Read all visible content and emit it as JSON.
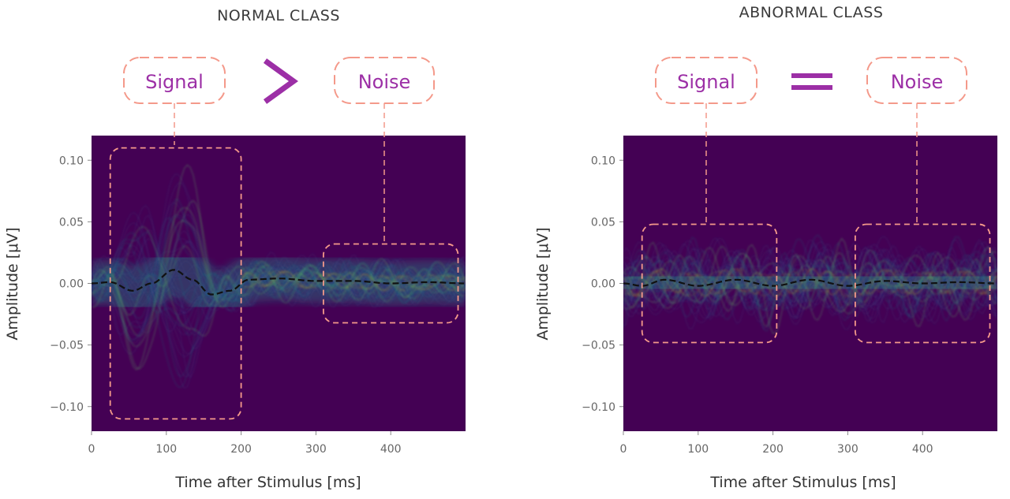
{
  "colors": {
    "background": "#440154",
    "trace_low": "#3b528b",
    "trace_mid": "#21918c",
    "trace_high": "#5ec962",
    "trace_peak": "#fde725",
    "mean_line": "#111111",
    "box": "#f4998a",
    "operator": "#9c2fa6"
  },
  "chart_data": [
    {
      "type": "heatmap",
      "title": "NORMAL CLASS",
      "xlabel": "Time after Stimulus [ms]",
      "ylabel": "Amplitude [μV]",
      "xlim": [
        0,
        500
      ],
      "ylim": [
        -0.12,
        0.12
      ],
      "x_ticks": [
        0,
        100,
        200,
        300,
        400
      ],
      "x_tick_labels": [
        "0",
        "100",
        "200",
        "300",
        "400"
      ],
      "y_ticks": [
        0.1,
        0.05,
        0.0,
        -0.05,
        -0.1
      ],
      "y_tick_labels": [
        "0.10",
        "0.05",
        "0.00",
        "−0.05",
        "−0.10"
      ],
      "grid": false,
      "mean_response": {
        "x": [
          0,
          25,
          55,
          80,
          110,
          135,
          160,
          185,
          210,
          250,
          300,
          350,
          400,
          450,
          500
        ],
        "y": [
          0.0,
          0.001,
          -0.006,
          0.0,
          0.011,
          0.003,
          -0.009,
          -0.006,
          0.003,
          0.004,
          0.002,
          0.002,
          0.0,
          0.001,
          0.0
        ]
      },
      "signal_envelope": {
        "x_range": [
          20,
          180
        ],
        "peak_amplitude": 0.1
      },
      "noise_band_amplitude": 0.02,
      "annotations": {
        "signal_label": "Signal",
        "noise_label": "Noise",
        "operator": ">",
        "signal_box": {
          "x": [
            25,
            200
          ],
          "y": [
            -0.11,
            0.11
          ]
        },
        "noise_box": {
          "x": [
            310,
            490
          ],
          "y": [
            -0.032,
            0.032
          ]
        }
      }
    },
    {
      "type": "heatmap",
      "title": "ABNORMAL CLASS",
      "xlabel": "Time after Stimulus [ms]",
      "ylabel": "Amplitude [μV]",
      "xlim": [
        0,
        500
      ],
      "ylim": [
        -0.12,
        0.12
      ],
      "x_ticks": [
        0,
        100,
        200,
        300,
        400
      ],
      "x_tick_labels": [
        "0",
        "100",
        "200",
        "300",
        "400"
      ],
      "y_ticks": [
        0.1,
        0.05,
        0.0,
        -0.05,
        -0.1
      ],
      "y_tick_labels": [
        "0.10",
        "0.05",
        "0.00",
        "−0.05",
        "−0.10"
      ],
      "grid": false,
      "mean_response": {
        "x": [
          0,
          25,
          55,
          100,
          150,
          200,
          250,
          300,
          350,
          400,
          450,
          500
        ],
        "y": [
          0.0,
          -0.002,
          0.003,
          -0.002,
          0.003,
          -0.002,
          0.003,
          -0.002,
          0.002,
          0.0,
          0.001,
          0.0
        ]
      },
      "signal_envelope": {
        "x_range": [
          20,
          180
        ],
        "peak_amplitude": 0.03
      },
      "noise_band_amplitude": 0.03,
      "annotations": {
        "signal_label": "Signal",
        "noise_label": "Noise",
        "operator": "=",
        "signal_box": {
          "x": [
            25,
            205
          ],
          "y": [
            -0.048,
            0.048
          ]
        },
        "noise_box": {
          "x": [
            310,
            490
          ],
          "y": [
            -0.048,
            0.048
          ]
        }
      }
    }
  ]
}
